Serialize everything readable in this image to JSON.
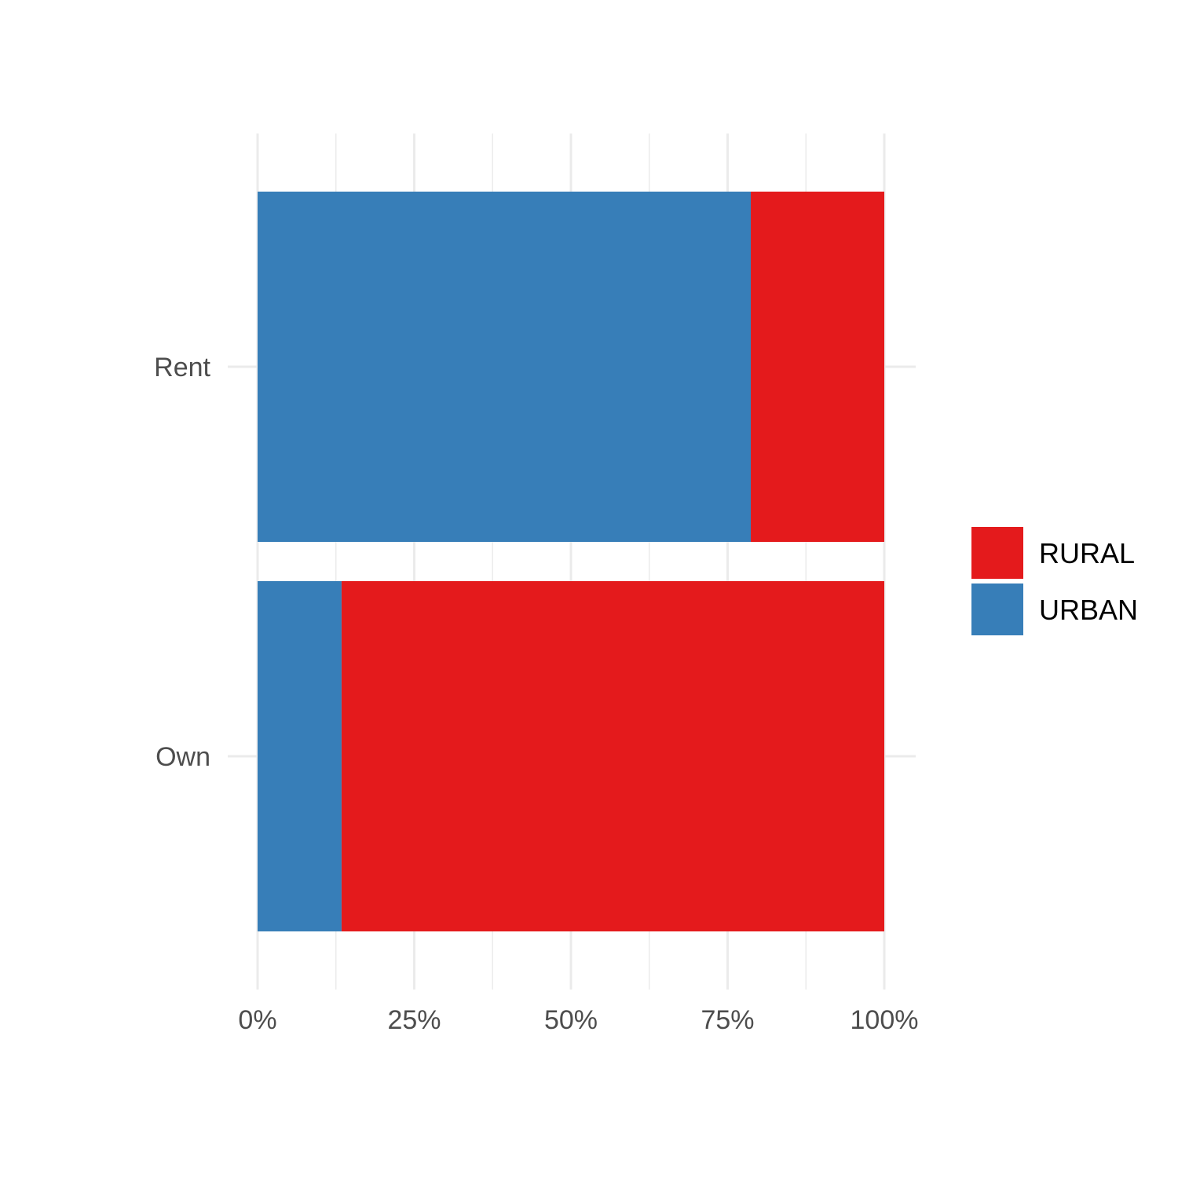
{
  "chart_data": {
    "type": "bar",
    "orientation": "horizontal",
    "stacked": true,
    "position": "fill",
    "categories": [
      "Rent",
      "Own"
    ],
    "series": [
      {
        "name": "URBAN",
        "values": [
          0.787,
          0.134
        ],
        "color": "#377EB8"
      },
      {
        "name": "RURAL",
        "values": [
          0.213,
          0.866
        ],
        "color": "#E41A1C"
      }
    ],
    "xlim": [
      0,
      1
    ],
    "x_ticks": [
      0,
      0.25,
      0.5,
      0.75,
      1
    ],
    "x_tick_labels": [
      "0%",
      "25%",
      "50%",
      "75%",
      "100%"
    ],
    "grid": true,
    "legend": {
      "placement": "right",
      "entries": [
        {
          "name": "RURAL",
          "color": "#E41A1C"
        },
        {
          "name": "URBAN",
          "color": "#377EB8"
        }
      ]
    },
    "title": "",
    "xlabel": "",
    "ylabel": ""
  }
}
